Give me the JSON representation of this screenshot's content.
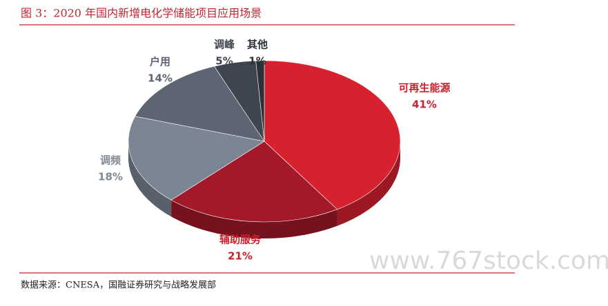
{
  "chart_data": {
    "type": "pie",
    "title": "图 3：2020 年国内新增电化学储能项目应用场景",
    "categories": [
      "可再生能源",
      "辅助服务",
      "调频",
      "户用",
      "调峰",
      "其他"
    ],
    "values": [
      41,
      21,
      18,
      14,
      5,
      1
    ],
    "value_labels": [
      "41%",
      "21%",
      "18%",
      "14%",
      "5%",
      "1%"
    ],
    "colors": [
      "#d8212f",
      "#a3192a",
      "#7b8594",
      "#5c6571",
      "#3f454e",
      "#2c3037"
    ],
    "source": "数据来源：CNESA，国融证券研究与战略发展部",
    "watermark": "www.767stock.com"
  }
}
